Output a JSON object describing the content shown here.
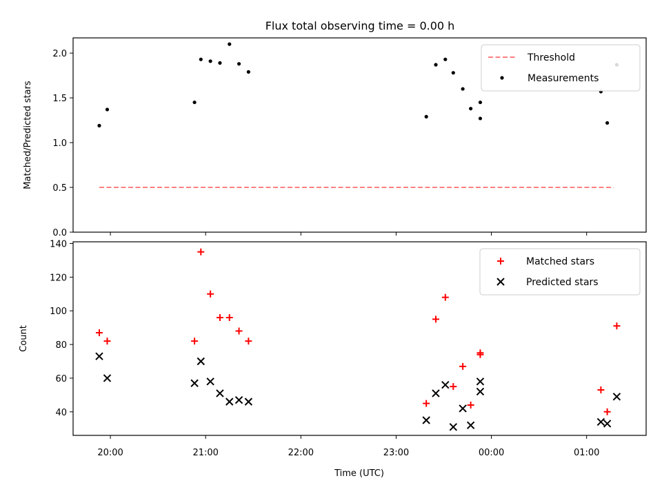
{
  "title": "Flux total observing time = 0.00 h",
  "x_tick_labels": [
    "20:00",
    "21:00",
    "22:00",
    "23:00",
    "00:00",
    "01:00"
  ],
  "xlabel": "Time (UTC)",
  "colors": {
    "threshold": "#ff8080",
    "measurements": "#000000",
    "matched": "#ff0000",
    "predicted": "#000000"
  },
  "chart_data": [
    {
      "type": "scatter",
      "ylabel": "Matched/Predicted stars",
      "ylim": [
        0,
        2.17
      ],
      "y_ticks": [
        0.0,
        0.5,
        1.0,
        1.5,
        2.0
      ],
      "y_tick_labels": [
        "0.0",
        "0.5",
        "1.0",
        "1.5",
        "2.0"
      ],
      "legend_placement": "top-right",
      "series": [
        {
          "name": "Threshold",
          "kind": "dashed-line",
          "x": [
            "19:53",
            "01:17"
          ],
          "y": [
            0.5,
            0.5
          ]
        },
        {
          "name": "Measurements",
          "kind": "dot",
          "x": [
            "19:53",
            "19:58",
            "20:53",
            "20:57",
            "21:03",
            "21:09",
            "21:15",
            "21:21",
            "21:27",
            "23:19",
            "23:25",
            "23:31",
            "23:36",
            "23:42",
            "23:47",
            "23:53",
            "23:53",
            "01:09",
            "01:13",
            "01:19"
          ],
          "y": [
            1.19,
            1.37,
            1.45,
            1.93,
            1.91,
            1.89,
            2.1,
            1.88,
            1.79,
            1.29,
            1.87,
            1.93,
            1.78,
            1.6,
            1.38,
            1.45,
            1.27,
            1.57,
            1.22,
            1.87
          ]
        }
      ]
    },
    {
      "type": "scatter",
      "ylabel": "Count",
      "ylim": [
        26,
        141
      ],
      "y_ticks": [
        40,
        60,
        80,
        100,
        120,
        140
      ],
      "y_tick_labels": [
        "40",
        "60",
        "80",
        "100",
        "120",
        "140"
      ],
      "legend_placement": "top-right",
      "series": [
        {
          "name": "Matched stars",
          "kind": "plus",
          "x": [
            "19:53",
            "19:58",
            "20:53",
            "20:57",
            "21:03",
            "21:09",
            "21:15",
            "21:21",
            "21:27",
            "23:19",
            "23:25",
            "23:31",
            "23:36",
            "23:42",
            "23:47",
            "23:53",
            "23:53",
            "01:09",
            "01:13",
            "01:19"
          ],
          "y": [
            87,
            82,
            82,
            135,
            110,
            96,
            96,
            88,
            82,
            45,
            95,
            108,
            55,
            67,
            44,
            75,
            74,
            53,
            40,
            91
          ]
        },
        {
          "name": "Predicted stars",
          "kind": "x",
          "x": [
            "19:53",
            "19:58",
            "20:53",
            "20:57",
            "21:03",
            "21:09",
            "21:15",
            "21:21",
            "21:27",
            "23:19",
            "23:25",
            "23:31",
            "23:36",
            "23:42",
            "23:47",
            "23:53",
            "23:53",
            "01:09",
            "01:13",
            "01:19"
          ],
          "y": [
            73,
            60,
            57,
            70,
            58,
            51,
            46,
            47,
            46,
            35,
            51,
            56,
            31,
            42,
            32,
            52,
            58,
            34,
            33,
            49
          ]
        }
      ]
    }
  ]
}
